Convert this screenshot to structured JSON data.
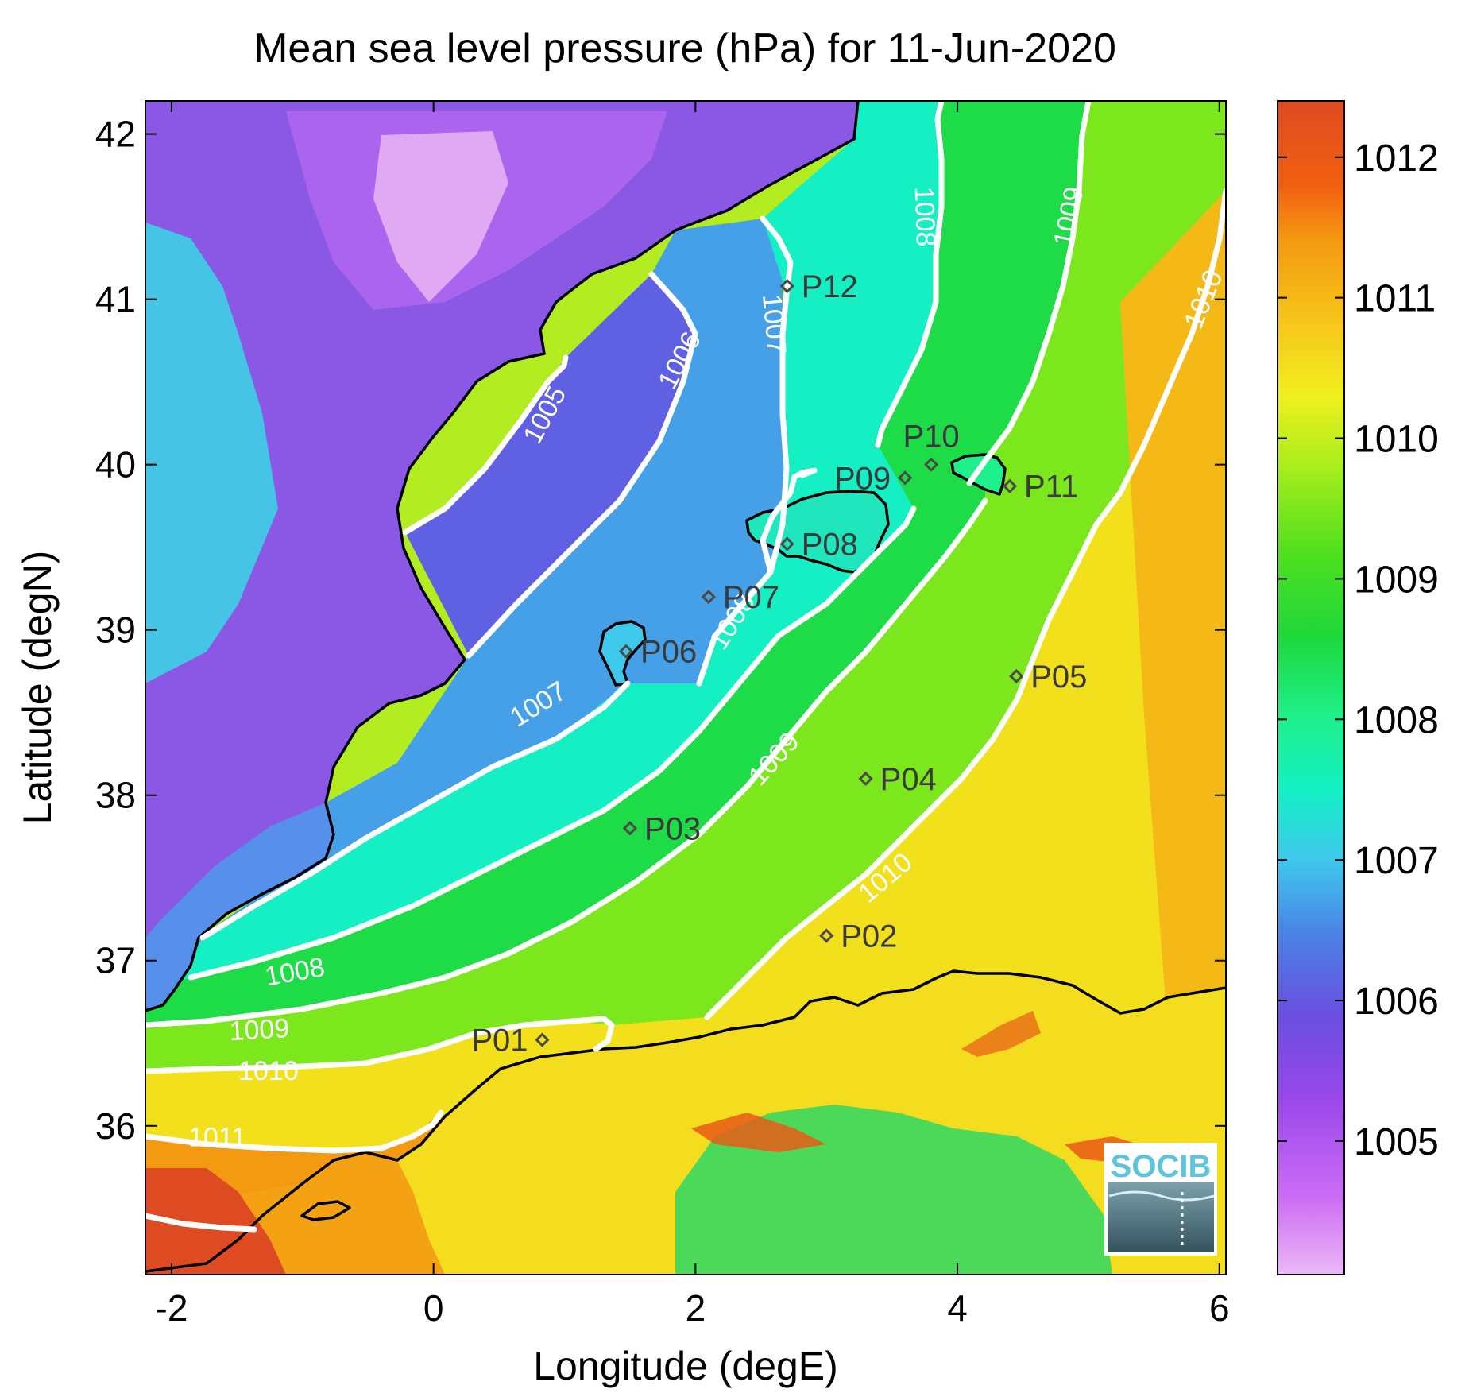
{
  "title": "Mean sea level pressure (hPa) for 11-Jun-2020",
  "x_axis": {
    "label": "Longitude (degE)",
    "range": [
      -2.2,
      6.05
    ],
    "ticks": [
      {
        "value": -2,
        "label": "-2"
      },
      {
        "value": 0,
        "label": "0"
      },
      {
        "value": 2,
        "label": "2"
      },
      {
        "value": 4,
        "label": "4"
      },
      {
        "value": 6,
        "label": "6"
      }
    ]
  },
  "y_axis": {
    "label": "Latitude (degN)",
    "range": [
      35.1,
      42.2
    ],
    "ticks": [
      {
        "value": 36,
        "label": "36"
      },
      {
        "value": 37,
        "label": "37"
      },
      {
        "value": 38,
        "label": "38"
      },
      {
        "value": 39,
        "label": "39"
      },
      {
        "value": 40,
        "label": "40"
      },
      {
        "value": 41,
        "label": "41"
      },
      {
        "value": 42,
        "label": "42"
      }
    ]
  },
  "colorbar": {
    "range": [
      1004.05,
      1012.4
    ],
    "ticks": [
      {
        "value": 1005,
        "label": "1005"
      },
      {
        "value": 1006,
        "label": "1006"
      },
      {
        "value": 1007,
        "label": "1007"
      },
      {
        "value": 1008,
        "label": "1008"
      },
      {
        "value": 1009,
        "label": "1009"
      },
      {
        "value": 1010,
        "label": "1010"
      },
      {
        "value": 1011,
        "label": "1011"
      },
      {
        "value": 1012,
        "label": "1012"
      }
    ],
    "colors": [
      {
        "value": 1004.05,
        "color": "#ecb8f6"
      },
      {
        "value": 1004.6,
        "color": "#cc6cf4"
      },
      {
        "value": 1005.3,
        "color": "#9a48ea"
      },
      {
        "value": 1005.9,
        "color": "#6a4ee0"
      },
      {
        "value": 1006.5,
        "color": "#4a86e6"
      },
      {
        "value": 1007.0,
        "color": "#3ec8ec"
      },
      {
        "value": 1007.5,
        "color": "#14f0c4"
      },
      {
        "value": 1008.0,
        "color": "#1ef08c"
      },
      {
        "value": 1008.6,
        "color": "#1ed83a"
      },
      {
        "value": 1009.2,
        "color": "#52e01e"
      },
      {
        "value": 1009.8,
        "color": "#a8ee1c"
      },
      {
        "value": 1010.3,
        "color": "#f0f01e"
      },
      {
        "value": 1010.8,
        "color": "#f6c81a"
      },
      {
        "value": 1011.4,
        "color": "#f49a12"
      },
      {
        "value": 1011.8,
        "color": "#f26010"
      },
      {
        "value": 1012.4,
        "color": "#de4a22"
      }
    ]
  },
  "contour_labels": [
    {
      "text": "1005",
      "lon": 0.85,
      "lat": 40.3,
      "angle": -62
    },
    {
      "text": "1006",
      "lon": 1.88,
      "lat": 40.63,
      "angle": -62
    },
    {
      "text": "1007",
      "lon": 2.6,
      "lat": 40.85,
      "angle": 85
    },
    {
      "text": "1007",
      "lon": 0.8,
      "lat": 38.55,
      "angle": -32
    },
    {
      "text": "1008",
      "lon": 3.75,
      "lat": 41.5,
      "angle": 88
    },
    {
      "text": "1008",
      "lon": 2.28,
      "lat": 39.05,
      "angle": -58
    },
    {
      "text": "1008",
      "lon": -1.06,
      "lat": 36.93,
      "angle": -10
    },
    {
      "text": "1009",
      "lon": 4.85,
      "lat": 41.5,
      "angle": -78
    },
    {
      "text": "1009",
      "lon": 2.6,
      "lat": 38.22,
      "angle": -48
    },
    {
      "text": "1009",
      "lon": -1.33,
      "lat": 36.58,
      "angle": -3
    },
    {
      "text": "1010",
      "lon": 5.88,
      "lat": 41.0,
      "angle": -68
    },
    {
      "text": "1010",
      "lon": 3.45,
      "lat": 37.5,
      "angle": -40
    },
    {
      "text": "1010",
      "lon": -1.26,
      "lat": 36.33,
      "angle": 0
    },
    {
      "text": "1011",
      "lon": -1.65,
      "lat": 35.93,
      "angle": 0
    }
  ],
  "stations": [
    {
      "name": "P01",
      "lon": 0.83,
      "lat": 36.52,
      "label_side": "left"
    },
    {
      "name": "P02",
      "lon": 3.0,
      "lat": 37.15,
      "label_side": "right"
    },
    {
      "name": "P03",
      "lon": 1.5,
      "lat": 37.8,
      "label_side": "right"
    },
    {
      "name": "P04",
      "lon": 3.3,
      "lat": 38.1,
      "label_side": "right"
    },
    {
      "name": "P05",
      "lon": 4.45,
      "lat": 38.72,
      "label_side": "right"
    },
    {
      "name": "P06",
      "lon": 1.47,
      "lat": 38.87,
      "label_side": "right"
    },
    {
      "name": "P07",
      "lon": 2.1,
      "lat": 39.2,
      "label_side": "right"
    },
    {
      "name": "P08",
      "lon": 2.7,
      "lat": 39.52,
      "label_side": "right"
    },
    {
      "name": "P09",
      "lon": 3.6,
      "lat": 39.92,
      "label_side": "left"
    },
    {
      "name": "P10",
      "lon": 3.8,
      "lat": 40.0,
      "label_side": "top"
    },
    {
      "name": "P11",
      "lon": 4.4,
      "lat": 39.87,
      "label_side": "right"
    },
    {
      "name": "P12",
      "lon": 2.7,
      "lat": 41.08,
      "label_side": "right"
    }
  ],
  "logo": {
    "text": "SOCIB"
  },
  "colors": {
    "contour": "#ffffff",
    "coastline": "#000000",
    "station": "#4a4a4a"
  }
}
